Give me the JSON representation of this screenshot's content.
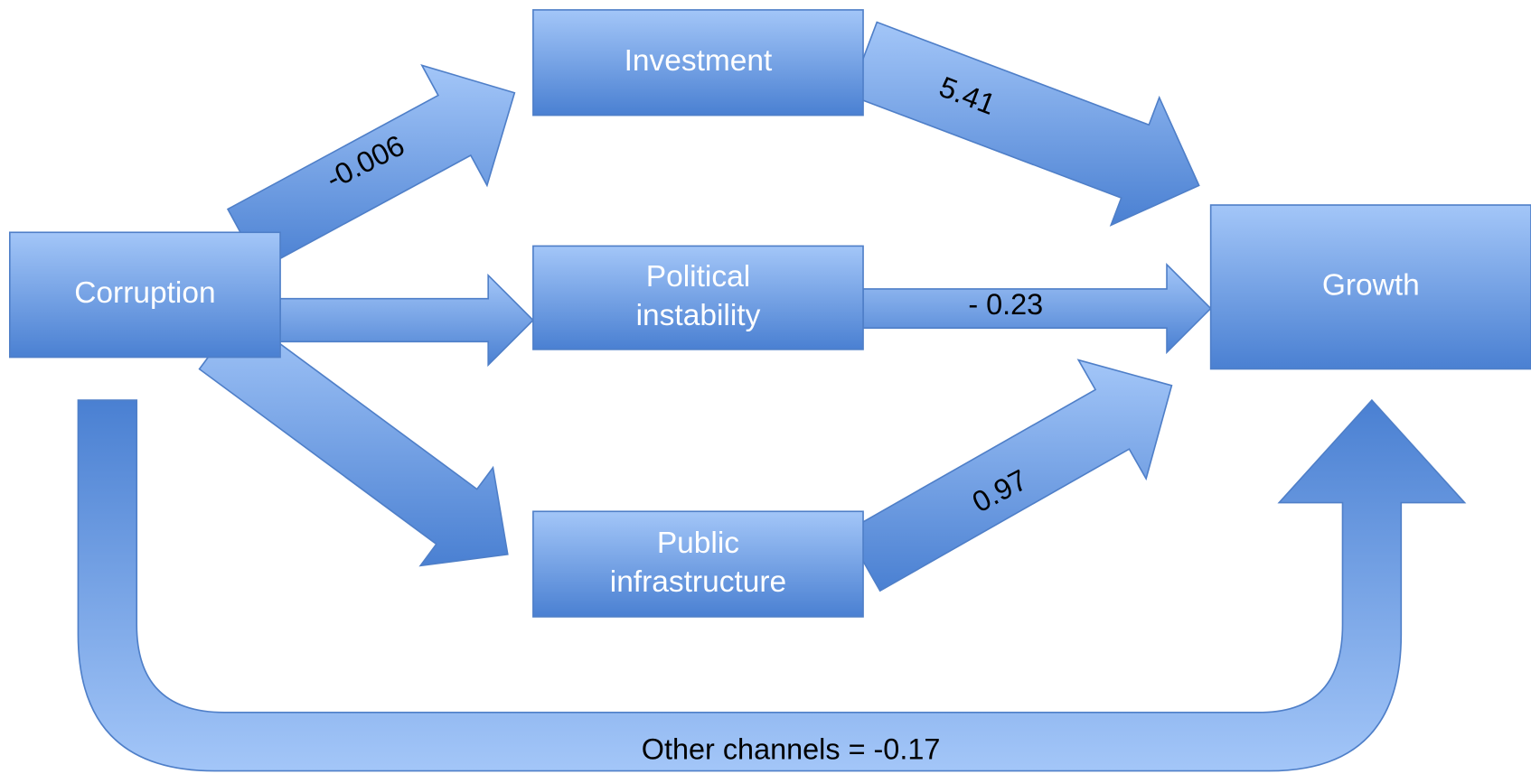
{
  "nodes": [
    {
      "lines": [
        "Corruption"
      ]
    },
    {
      "lines": [
        "Investment"
      ]
    },
    {
      "lines": [
        "Political",
        "instability"
      ]
    },
    {
      "lines": [
        "Public",
        "infrastructure"
      ]
    },
    {
      "lines": [
        "Growth"
      ]
    }
  ],
  "edges": [
    {
      "label": "-0.006"
    },
    {
      "label": "5.41"
    },
    {
      "label": "- 0.23"
    },
    {
      "label": "0.97"
    },
    {
      "label": "Other channels = -0.17"
    }
  ]
}
